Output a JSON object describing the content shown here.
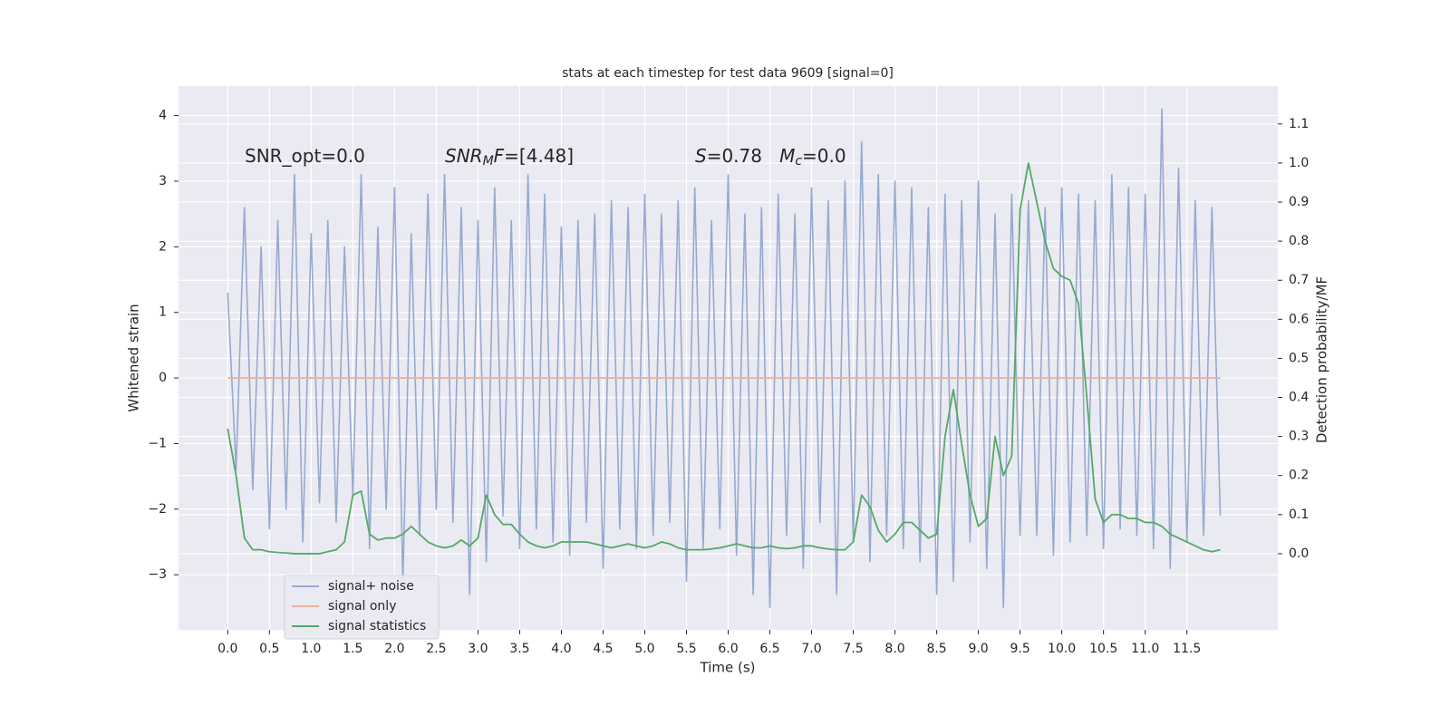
{
  "chart_data": {
    "type": "line",
    "title": "stats at each timestep for test data 9609 [signal=0]",
    "xlabel": "Time (s)",
    "ylabel": "Whitened strain",
    "y2label": "Detection probability/MF",
    "annotations": [
      [
        "SNR_opt=0.0"
      ],
      [
        "SNR",
        "M",
        "F",
        "=[4.48]"
      ],
      [
        "S",
        "=0.78   ",
        "M",
        "c",
        "=0.0"
      ]
    ],
    "grid": true,
    "legend": "lower left",
    "xlim": [
      -0.59,
      12.59
    ],
    "ylim": [
      -3.84,
      4.45
    ],
    "y2lim": [
      -0.195,
      1.197
    ],
    "xticks": [
      {
        "value": 0,
        "label": "0.0"
      },
      {
        "value": 0.5,
        "label": "0.5"
      },
      {
        "value": 1,
        "label": "1.0"
      },
      {
        "value": 1.5,
        "label": "1.5"
      },
      {
        "value": 2,
        "label": "2.0"
      },
      {
        "value": 2.5,
        "label": "2.5"
      },
      {
        "value": 3,
        "label": "3.0"
      },
      {
        "value": 3.5,
        "label": "3.5"
      },
      {
        "value": 4,
        "label": "4.0"
      },
      {
        "value": 4.5,
        "label": "4.5"
      },
      {
        "value": 5,
        "label": "5.0"
      },
      {
        "value": 5.5,
        "label": "5.5"
      },
      {
        "value": 6,
        "label": "6.0"
      },
      {
        "value": 6.5,
        "label": "6.5"
      },
      {
        "value": 7,
        "label": "7.0"
      },
      {
        "value": 7.5,
        "label": "7.5"
      },
      {
        "value": 8,
        "label": "8.0"
      },
      {
        "value": 8.5,
        "label": "8.5"
      },
      {
        "value": 9,
        "label": "9.0"
      },
      {
        "value": 9.5,
        "label": "9.5"
      },
      {
        "value": 10,
        "label": "10.0"
      },
      {
        "value": 10.5,
        "label": "10.5"
      },
      {
        "value": 11,
        "label": "11.0"
      },
      {
        "value": 11.5,
        "label": "11.5"
      }
    ],
    "yticks": [
      {
        "value": -3,
        "label": "−3"
      },
      {
        "value": -2,
        "label": "−2"
      },
      {
        "value": -1,
        "label": "−1"
      },
      0,
      1,
      2,
      3,
      4
    ],
    "y2ticks": [
      {
        "value": 0,
        "label": "0.0"
      },
      {
        "value": 0.1,
        "label": "0.1"
      },
      {
        "value": 0.2,
        "label": "0.2"
      },
      {
        "value": 0.3,
        "label": "0.3"
      },
      {
        "value": 0.4,
        "label": "0.4"
      },
      {
        "value": 0.5,
        "label": "0.5"
      },
      {
        "value": 0.6,
        "label": "0.6"
      },
      {
        "value": 0.7,
        "label": "0.7"
      },
      {
        "value": 0.8,
        "label": "0.8"
      },
      {
        "value": 0.9,
        "label": "0.9"
      },
      {
        "value": 1,
        "label": "1.0"
      },
      {
        "value": 1.1,
        "label": "1.1"
      }
    ],
    "x": [
      0,
      0.1,
      0.2,
      0.3,
      0.4,
      0.5,
      0.6,
      0.7,
      0.8,
      0.9,
      1,
      1.1,
      1.2,
      1.3,
      1.4,
      1.5,
      1.6,
      1.7,
      1.8,
      1.9,
      2,
      2.1,
      2.2,
      2.3,
      2.4,
      2.5,
      2.6,
      2.7,
      2.8,
      2.9,
      3,
      3.1,
      3.2,
      3.3,
      3.4,
      3.5,
      3.6,
      3.7,
      3.8,
      3.9,
      4,
      4.1,
      4.2,
      4.3,
      4.4,
      4.5,
      4.6,
      4.7,
      4.8,
      4.9,
      5,
      5.1,
      5.2,
      5.3,
      5.4,
      5.5,
      5.6,
      5.7,
      5.8,
      5.9,
      6,
      6.1,
      6.2,
      6.3,
      6.4,
      6.5,
      6.6,
      6.7,
      6.8,
      6.9,
      7,
      7.1,
      7.2,
      7.3,
      7.4,
      7.5,
      7.6,
      7.7,
      7.8,
      7.9,
      8,
      8.1,
      8.2,
      8.3,
      8.4,
      8.5,
      8.6,
      8.7,
      8.8,
      8.9,
      9,
      9.1,
      9.2,
      9.3,
      9.4,
      9.5,
      9.6,
      9.7,
      9.8,
      9.9,
      10,
      10.1,
      10.2,
      10.3,
      10.4,
      10.5,
      10.6,
      10.7,
      10.8,
      10.9,
      11,
      11.1,
      11.2,
      11.3,
      11.4,
      11.5,
      11.6,
      11.7,
      11.8,
      11.9
    ],
    "series": [
      {
        "name": "signal+ noise",
        "color": "#98a9cf",
        "axis": "y",
        "values": [
          1.3,
          -1.4,
          2.6,
          -1.7,
          2.0,
          -2.3,
          2.4,
          -2.0,
          3.1,
          -2.5,
          2.2,
          -1.9,
          2.4,
          -2.2,
          2.0,
          -1.8,
          3.1,
          -2.6,
          2.3,
          -2.0,
          2.9,
          -3.1,
          2.2,
          -2.4,
          2.8,
          -2.0,
          3.1,
          -2.2,
          2.6,
          -3.3,
          2.4,
          -2.8,
          2.9,
          -2.1,
          2.4,
          -2.6,
          3.1,
          -2.3,
          2.8,
          -2.5,
          2.3,
          -2.7,
          2.4,
          -2.2,
          2.5,
          -2.9,
          2.7,
          -2.3,
          2.6,
          -2.6,
          2.8,
          -2.4,
          2.5,
          -2.2,
          2.7,
          -3.1,
          2.9,
          -2.6,
          2.4,
          -2.3,
          3.1,
          -2.7,
          2.5,
          -3.3,
          2.6,
          -3.5,
          2.8,
          -2.4,
          2.5,
          -2.9,
          2.9,
          -2.2,
          2.7,
          -3.3,
          3.0,
          -2.5,
          3.6,
          -2.8,
          3.1,
          -2.4,
          3.0,
          -2.6,
          2.9,
          -2.8,
          2.6,
          -3.3,
          2.8,
          -3.1,
          2.7,
          -2.5,
          3.0,
          -2.9,
          2.5,
          -3.5,
          2.8,
          -2.4,
          2.7,
          -2.4,
          2.6,
          -2.7,
          2.9,
          -2.5,
          2.8,
          -2.4,
          2.7,
          -2.6,
          3.1,
          -2.3,
          2.9,
          -2.4,
          2.8,
          -2.6,
          4.1,
          -2.9,
          3.2,
          -2.5,
          2.7,
          -2.4,
          2.6,
          -2.1
        ]
      },
      {
        "name": "signal only",
        "color": "#e5b4a0",
        "axis": "y",
        "values": [
          0,
          0,
          0,
          0,
          0,
          0,
          0,
          0,
          0,
          0,
          0,
          0,
          0,
          0,
          0,
          0,
          0,
          0,
          0,
          0,
          0,
          0,
          0,
          0,
          0,
          0,
          0,
          0,
          0,
          0,
          0,
          0,
          0,
          0,
          0,
          0,
          0,
          0,
          0,
          0,
          0,
          0,
          0,
          0,
          0,
          0,
          0,
          0,
          0,
          0,
          0,
          0,
          0,
          0,
          0,
          0,
          0,
          0,
          0,
          0,
          0,
          0,
          0,
          0,
          0,
          0,
          0,
          0,
          0,
          0,
          0,
          0,
          0,
          0,
          0,
          0,
          0,
          0,
          0,
          0,
          0,
          0,
          0,
          0,
          0,
          0,
          0,
          0,
          0,
          0,
          0,
          0,
          0,
          0,
          0,
          0,
          0,
          0,
          0,
          0,
          0,
          0,
          0,
          0,
          0,
          0,
          0,
          0,
          0,
          0,
          0,
          0,
          0,
          0,
          0,
          0,
          0,
          0,
          0,
          0
        ]
      },
      {
        "name": "signal statistics",
        "color": "#55a868",
        "axis": "y2",
        "values": [
          0.32,
          0.2,
          0.04,
          0.01,
          0.01,
          0.005,
          0.003,
          0.002,
          0,
          0,
          0,
          0,
          0.005,
          0.01,
          0.03,
          0.15,
          0.16,
          0.05,
          0.035,
          0.04,
          0.04,
          0.05,
          0.07,
          0.05,
          0.03,
          0.02,
          0.015,
          0.02,
          0.035,
          0.02,
          0.04,
          0.15,
          0.1,
          0.075,
          0.075,
          0.05,
          0.03,
          0.02,
          0.015,
          0.02,
          0.03,
          0.03,
          0.03,
          0.03,
          0.025,
          0.02,
          0.015,
          0.02,
          0.025,
          0.02,
          0.015,
          0.02,
          0.03,
          0.025,
          0.015,
          0.01,
          0.01,
          0.01,
          0.012,
          0.015,
          0.02,
          0.025,
          0.02,
          0.015,
          0.015,
          0.02,
          0.015,
          0.013,
          0.015,
          0.02,
          0.02,
          0.015,
          0.012,
          0.01,
          0.01,
          0.03,
          0.15,
          0.12,
          0.06,
          0.03,
          0.05,
          0.08,
          0.08,
          0.06,
          0.04,
          0.05,
          0.3,
          0.42,
          0.28,
          0.15,
          0.07,
          0.09,
          0.3,
          0.2,
          0.25,
          0.88,
          1.0,
          0.9,
          0.8,
          0.73,
          0.71,
          0.7,
          0.64,
          0.4,
          0.14,
          0.08,
          0.1,
          0.1,
          0.09,
          0.09,
          0.08,
          0.08,
          0.07,
          0.05,
          0.04,
          0.03,
          0.02,
          0.01,
          0.005,
          0.01
        ]
      }
    ]
  }
}
